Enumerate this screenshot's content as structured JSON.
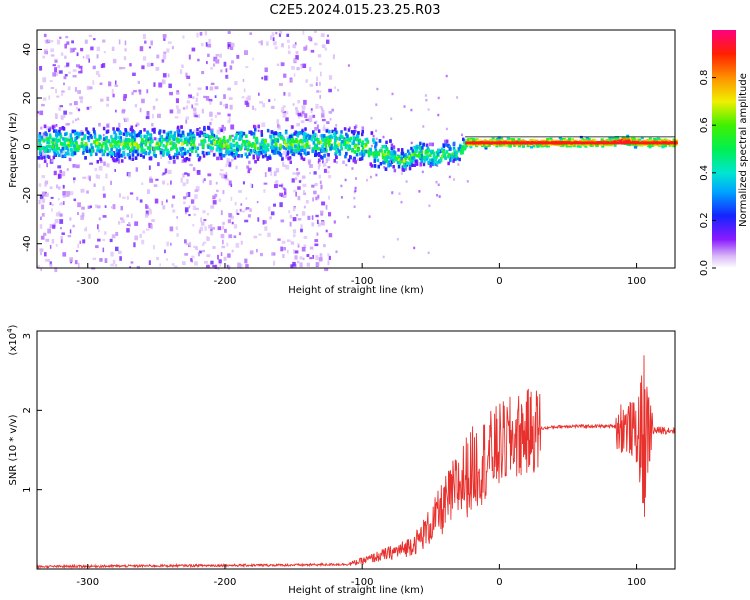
{
  "title": "C2E5.2024.015.23.25.R03",
  "chart_data": [
    {
      "type": "heatmap",
      "xlabel": "Height of straight line (km)",
      "ylabel": "Frequency (Hz)",
      "xlim": [
        -337,
        128
      ],
      "ylim": [
        -50,
        48
      ],
      "xticks": [
        -300,
        -200,
        -100,
        0,
        100
      ],
      "xtick_labels": [
        "-300",
        "-200",
        "-100",
        "0",
        "100"
      ],
      "yticks": [
        -40,
        -20,
        0,
        20,
        40
      ],
      "ytick_labels": [
        "-40",
        "-20",
        "0",
        "20",
        "40"
      ],
      "colorbar": {
        "label": "Normalized spectral amplitude",
        "range": [
          0,
          1
        ],
        "ticks": [
          0.0,
          0.2,
          0.4,
          0.6,
          0.8
        ],
        "tick_labels": [
          "0.0",
          "0.2",
          "0.4",
          "0.6",
          "0.8"
        ],
        "colormap": "rainbow"
      },
      "ridge": {
        "x": [
          -337,
          -300,
          -250,
          -200,
          -150,
          -120,
          -100,
          -80,
          -70,
          -60,
          -50,
          -40,
          -30,
          -25,
          -10,
          0,
          20,
          50,
          80,
          90,
          100,
          128
        ],
        "y": [
          1.5,
          1.0,
          1.2,
          1.5,
          1.0,
          1.5,
          0,
          -4,
          -6,
          -2,
          -4,
          -3,
          -2,
          1.5,
          1.5,
          1.5,
          1.5,
          1.5,
          1.5,
          2.5,
          1.5,
          1.5
        ]
      },
      "grid": false
    },
    {
      "type": "line",
      "xlabel": "Height of straight line (km)",
      "ylabel": "SNR (10 * v/v)",
      "yscale_label": "(x10",
      "yscale_exp": "4",
      "yscale_close": ")",
      "xlim": [
        -337,
        128
      ],
      "ylim": [
        0,
        3
      ],
      "xticks": [
        -300,
        -200,
        -100,
        0,
        100
      ],
      "xtick_labels": [
        "-300",
        "-200",
        "-100",
        "0",
        "100"
      ],
      "yticks": [
        1,
        2,
        3
      ],
      "ytick_labels": [
        "1",
        "2",
        "3"
      ],
      "series": [
        {
          "color": "#e8302c",
          "x": [
            -337,
            -250,
            -150,
            -110,
            -100,
            -80,
            -70,
            -60,
            -50,
            -40,
            -30,
            -20,
            -10,
            0,
            10,
            20,
            30,
            40,
            50,
            80,
            90,
            95,
            100,
            105,
            110,
            120,
            128
          ],
          "y": [
            0.03,
            0.04,
            0.05,
            0.06,
            0.1,
            0.2,
            0.25,
            0.35,
            0.55,
            0.8,
            1.05,
            1.25,
            1.4,
            1.55,
            1.65,
            1.72,
            1.77,
            1.79,
            1.8,
            1.8,
            1.8,
            1.78,
            1.72,
            1.68,
            1.74,
            1.75,
            1.75
          ]
        }
      ],
      "grid": false
    }
  ]
}
